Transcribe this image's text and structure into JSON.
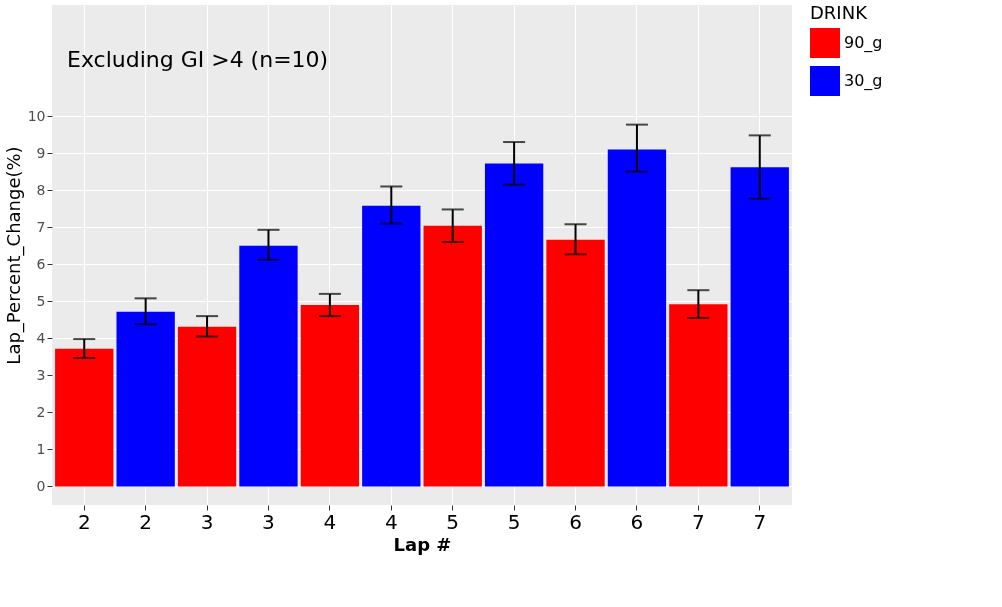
{
  "chart_data": {
    "type": "bar",
    "xlabel": "Lap #",
    "ylabel": "Lap_Percent_Change(%)",
    "legend_title": "DRINK",
    "annotations": [
      "Excluding GI >4 (n=10)"
    ],
    "categories": [
      "2",
      "2",
      "3",
      "3",
      "4",
      "4",
      "5",
      "5",
      "6",
      "6",
      "7",
      "7"
    ],
    "series": [
      {
        "name": "90_g",
        "color": "#ff0000",
        "values": [
          3.72,
          null,
          4.31,
          null,
          4.9,
          null,
          7.04,
          null,
          6.66,
          null,
          4.92,
          null
        ],
        "errors": [
          [
            3.47,
            3.98
          ],
          null,
          [
            4.05,
            4.6
          ],
          null,
          [
            4.6,
            5.2
          ],
          null,
          [
            6.6,
            7.48
          ],
          null,
          [
            6.27,
            7.08
          ],
          null,
          [
            4.55,
            5.3
          ],
          null
        ]
      },
      {
        "name": "30_g",
        "color": "#0000ff",
        "values": [
          null,
          4.72,
          null,
          6.5,
          null,
          7.58,
          null,
          8.72,
          null,
          9.1,
          null,
          8.62
        ],
        "errors": [
          null,
          [
            4.38,
            5.08
          ],
          null,
          [
            6.12,
            6.93
          ],
          null,
          [
            7.1,
            8.1
          ],
          null,
          [
            8.15,
            9.3
          ],
          null,
          [
            8.5,
            9.77
          ],
          null,
          [
            7.77,
            9.48
          ]
        ]
      }
    ],
    "ylim": [
      -0.5,
      13
    ],
    "yticks": [
      0,
      1,
      2,
      3,
      4,
      5,
      6,
      7,
      8,
      9,
      10
    ],
    "grid": true,
    "legend": "right"
  }
}
